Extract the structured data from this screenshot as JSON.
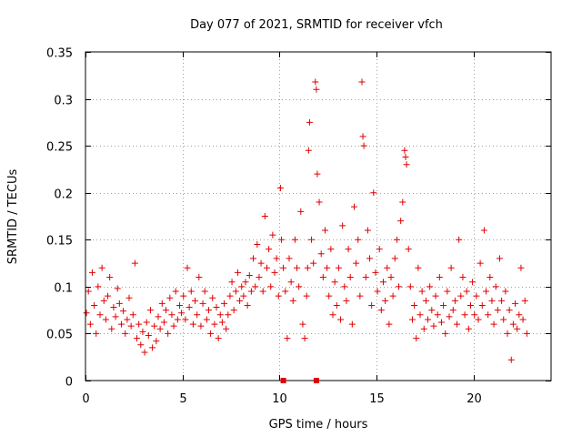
{
  "chart_data": {
    "type": "scatter",
    "title": "Day 077 of 2021, SRMTID for receiver vfch",
    "xlabel": "GPS time / hours",
    "ylabel": "SRMTID / TECUs",
    "xlim": [
      0,
      24
    ],
    "ylim": [
      0,
      0.35
    ],
    "xticks": [
      0,
      5,
      10,
      15,
      20
    ],
    "xtick_labels": [
      "0",
      "5",
      "10",
      "15",
      "20"
    ],
    "yticks": [
      0,
      0.05,
      0.1,
      0.15,
      0.2,
      0.25,
      0.3,
      0.35
    ],
    "ytick_labels": [
      "0",
      "0.05",
      "0.1",
      "0.15",
      "0.2",
      "0.25",
      "0.3",
      "0.35"
    ],
    "grid": true,
    "marker": "plus",
    "color": "#e00000",
    "series": [
      {
        "name": "SRMTID",
        "points": [
          [
            0.05,
            0.072
          ],
          [
            0.15,
            0.095
          ],
          [
            0.25,
            0.06
          ],
          [
            0.35,
            0.115
          ],
          [
            0.45,
            0.08
          ],
          [
            0.55,
            0.05
          ],
          [
            0.65,
            0.1
          ],
          [
            0.75,
            0.07
          ],
          [
            0.85,
            0.12
          ],
          [
            0.95,
            0.085
          ],
          [
            1.05,
            0.065
          ],
          [
            1.15,
            0.09
          ],
          [
            1.25,
            0.11
          ],
          [
            1.35,
            0.055
          ],
          [
            1.45,
            0.078
          ],
          [
            1.55,
            0.068
          ],
          [
            1.65,
            0.098
          ],
          [
            1.75,
            0.082
          ],
          [
            1.85,
            0.06
          ],
          [
            1.95,
            0.074
          ],
          [
            2.05,
            0.05
          ],
          [
            2.15,
            0.065
          ],
          [
            2.25,
            0.088
          ],
          [
            2.35,
            0.058
          ],
          [
            2.45,
            0.07
          ],
          [
            2.55,
            0.125
          ],
          [
            2.65,
            0.045
          ],
          [
            2.75,
            0.06
          ],
          [
            2.85,
            0.038
          ],
          [
            2.95,
            0.052
          ],
          [
            3.05,
            0.03
          ],
          [
            3.15,
            0.062
          ],
          [
            3.25,
            0.048
          ],
          [
            3.35,
            0.075
          ],
          [
            3.45,
            0.035
          ],
          [
            3.55,
            0.058
          ],
          [
            3.65,
            0.042
          ],
          [
            3.75,
            0.068
          ],
          [
            3.85,
            0.055
          ],
          [
            3.95,
            0.082
          ],
          [
            4.05,
            0.062
          ],
          [
            4.15,
            0.075
          ],
          [
            4.25,
            0.05
          ],
          [
            4.35,
            0.088
          ],
          [
            4.45,
            0.07
          ],
          [
            4.55,
            0.058
          ],
          [
            4.65,
            0.095
          ],
          [
            4.75,
            0.065
          ],
          [
            4.85,
            0.08
          ],
          [
            4.95,
            0.072
          ],
          [
            5.05,
            0.09
          ],
          [
            5.15,
            0.065
          ],
          [
            5.25,
            0.12
          ],
          [
            5.35,
            0.078
          ],
          [
            5.45,
            0.095
          ],
          [
            5.55,
            0.06
          ],
          [
            5.65,
            0.085
          ],
          [
            5.75,
            0.07
          ],
          [
            5.85,
            0.11
          ],
          [
            5.95,
            0.058
          ],
          [
            6.05,
            0.082
          ],
          [
            6.15,
            0.095
          ],
          [
            6.25,
            0.065
          ],
          [
            6.35,
            0.075
          ],
          [
            6.45,
            0.05
          ],
          [
            6.55,
            0.088
          ],
          [
            6.65,
            0.06
          ],
          [
            6.75,
            0.078
          ],
          [
            6.85,
            0.045
          ],
          [
            6.95,
            0.07
          ],
          [
            7.05,
            0.062
          ],
          [
            7.15,
            0.082
          ],
          [
            7.25,
            0.055
          ],
          [
            7.35,
            0.07
          ],
          [
            7.45,
            0.09
          ],
          [
            7.55,
            0.105
          ],
          [
            7.65,
            0.075
          ],
          [
            7.75,
            0.095
          ],
          [
            7.85,
            0.115
          ],
          [
            7.95,
            0.085
          ],
          [
            8.05,
            0.1
          ],
          [
            8.15,
            0.09
          ],
          [
            8.25,
            0.105
          ],
          [
            8.35,
            0.08
          ],
          [
            8.45,
            0.112
          ],
          [
            8.55,
            0.095
          ],
          [
            8.65,
            0.13
          ],
          [
            8.75,
            0.1
          ],
          [
            8.85,
            0.145
          ],
          [
            8.95,
            0.11
          ],
          [
            9.05,
            0.125
          ],
          [
            9.15,
            0.095
          ],
          [
            9.25,
            0.175
          ],
          [
            9.35,
            0.12
          ],
          [
            9.45,
            0.14
          ],
          [
            9.55,
            0.1
          ],
          [
            9.65,
            0.155
          ],
          [
            9.75,
            0.115
          ],
          [
            9.85,
            0.13
          ],
          [
            9.95,
            0.09
          ],
          [
            10.05,
            0.205
          ],
          [
            10.1,
            0.15
          ],
          [
            10.2,
            0.12
          ],
          [
            10.3,
            0.095
          ],
          [
            10.4,
            0.045
          ],
          [
            10.5,
            0.13
          ],
          [
            10.6,
            0.105
          ],
          [
            10.7,
            0.085
          ],
          [
            10.8,
            0.15
          ],
          [
            10.9,
            0.12
          ],
          [
            11.0,
            0.1
          ],
          [
            11.1,
            0.18
          ],
          [
            11.2,
            0.06
          ],
          [
            11.3,
            0.045
          ],
          [
            11.4,
            0.09
          ],
          [
            11.45,
            0.12
          ],
          [
            11.5,
            0.245
          ],
          [
            11.55,
            0.275
          ],
          [
            11.65,
            0.15
          ],
          [
            11.75,
            0.125
          ],
          [
            11.85,
            0.318
          ],
          [
            11.9,
            0.31
          ],
          [
            11.95,
            0.22
          ],
          [
            12.05,
            0.19
          ],
          [
            12.15,
            0.135
          ],
          [
            12.25,
            0.11
          ],
          [
            12.35,
            0.16
          ],
          [
            12.45,
            0.12
          ],
          [
            12.55,
            0.09
          ],
          [
            12.65,
            0.14
          ],
          [
            12.75,
            0.07
          ],
          [
            12.85,
            0.105
          ],
          [
            12.95,
            0.08
          ],
          [
            13.05,
            0.12
          ],
          [
            13.15,
            0.065
          ],
          [
            13.25,
            0.165
          ],
          [
            13.35,
            0.1
          ],
          [
            13.45,
            0.085
          ],
          [
            13.55,
            0.14
          ],
          [
            13.65,
            0.11
          ],
          [
            13.75,
            0.06
          ],
          [
            13.85,
            0.185
          ],
          [
            13.95,
            0.125
          ],
          [
            14.05,
            0.15
          ],
          [
            14.15,
            0.09
          ],
          [
            14.25,
            0.318
          ],
          [
            14.3,
            0.26
          ],
          [
            14.35,
            0.25
          ],
          [
            14.45,
            0.11
          ],
          [
            14.55,
            0.16
          ],
          [
            14.65,
            0.13
          ],
          [
            14.75,
            0.08
          ],
          [
            14.85,
            0.2
          ],
          [
            14.95,
            0.115
          ],
          [
            15.05,
            0.095
          ],
          [
            15.15,
            0.14
          ],
          [
            15.25,
            0.075
          ],
          [
            15.35,
            0.105
          ],
          [
            15.45,
            0.085
          ],
          [
            15.55,
            0.12
          ],
          [
            15.65,
            0.06
          ],
          [
            15.75,
            0.11
          ],
          [
            15.85,
            0.09
          ],
          [
            15.95,
            0.13
          ],
          [
            16.05,
            0.15
          ],
          [
            16.15,
            0.1
          ],
          [
            16.25,
            0.17
          ],
          [
            16.35,
            0.19
          ],
          [
            16.45,
            0.245
          ],
          [
            16.5,
            0.238
          ],
          [
            16.55,
            0.23
          ],
          [
            16.65,
            0.14
          ],
          [
            16.75,
            0.1
          ],
          [
            16.85,
            0.065
          ],
          [
            16.95,
            0.08
          ],
          [
            17.05,
            0.045
          ],
          [
            17.15,
            0.12
          ],
          [
            17.25,
            0.07
          ],
          [
            17.35,
            0.095
          ],
          [
            17.45,
            0.055
          ],
          [
            17.55,
            0.085
          ],
          [
            17.65,
            0.065
          ],
          [
            17.75,
            0.1
          ],
          [
            17.85,
            0.075
          ],
          [
            17.95,
            0.058
          ],
          [
            18.05,
            0.09
          ],
          [
            18.15,
            0.07
          ],
          [
            18.25,
            0.11
          ],
          [
            18.35,
            0.062
          ],
          [
            18.45,
            0.08
          ],
          [
            18.55,
            0.05
          ],
          [
            18.65,
            0.095
          ],
          [
            18.75,
            0.068
          ],
          [
            18.85,
            0.12
          ],
          [
            18.95,
            0.075
          ],
          [
            19.05,
            0.085
          ],
          [
            19.15,
            0.06
          ],
          [
            19.25,
            0.15
          ],
          [
            19.35,
            0.09
          ],
          [
            19.45,
            0.11
          ],
          [
            19.55,
            0.07
          ],
          [
            19.65,
            0.095
          ],
          [
            19.75,
            0.055
          ],
          [
            19.85,
            0.08
          ],
          [
            19.95,
            0.105
          ],
          [
            20.05,
            0.07
          ],
          [
            20.15,
            0.09
          ],
          [
            20.25,
            0.065
          ],
          [
            20.35,
            0.125
          ],
          [
            20.45,
            0.08
          ],
          [
            20.55,
            0.16
          ],
          [
            20.65,
            0.095
          ],
          [
            20.75,
            0.07
          ],
          [
            20.85,
            0.11
          ],
          [
            20.95,
            0.085
          ],
          [
            21.05,
            0.06
          ],
          [
            21.15,
            0.1
          ],
          [
            21.25,
            0.075
          ],
          [
            21.35,
            0.13
          ],
          [
            21.45,
            0.085
          ],
          [
            21.55,
            0.065
          ],
          [
            21.65,
            0.095
          ],
          [
            21.75,
            0.05
          ],
          [
            21.85,
            0.075
          ],
          [
            21.95,
            0.022
          ],
          [
            22.05,
            0.06
          ],
          [
            22.15,
            0.082
          ],
          [
            22.25,
            0.055
          ],
          [
            22.35,
            0.07
          ],
          [
            22.45,
            0.12
          ],
          [
            22.55,
            0.065
          ],
          [
            22.65,
            0.085
          ],
          [
            22.75,
            0.05
          ]
        ]
      }
    ],
    "axis_markers": {
      "name": "data gaps",
      "x": [
        10.2,
        11.9
      ],
      "y": 0
    }
  }
}
